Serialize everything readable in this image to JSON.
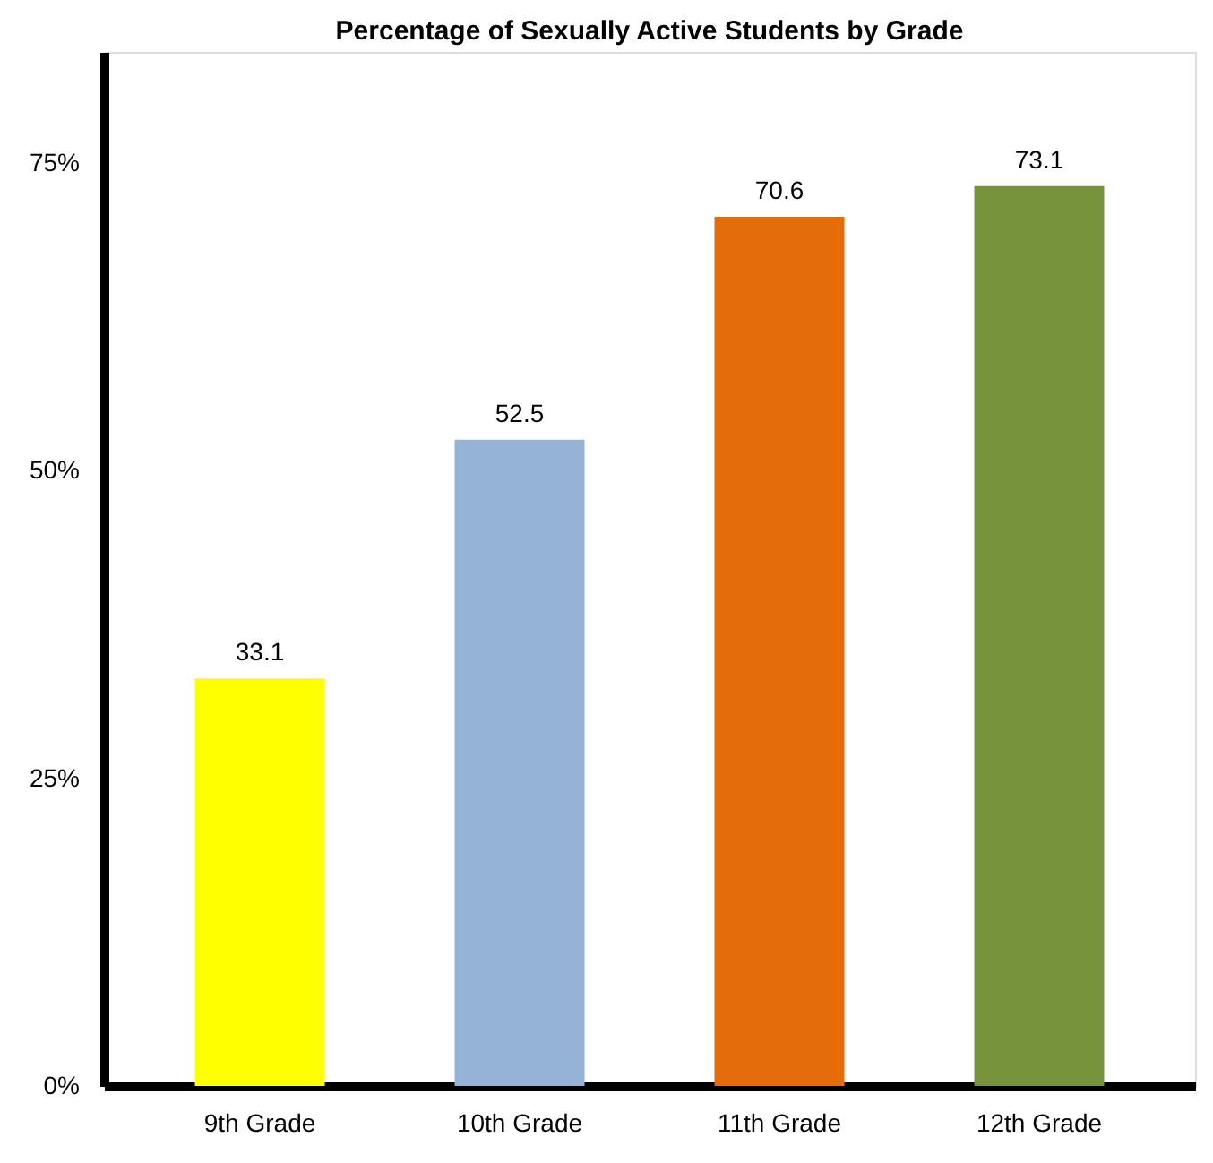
{
  "chart_data": {
    "type": "bar",
    "title": "Percentage of Sexually Active Students by Grade",
    "categories": [
      "9th Grade",
      "10th Grade",
      "11th Grade",
      "12th Grade"
    ],
    "values": [
      33.1,
      52.5,
      70.6,
      73.1
    ],
    "colors": [
      "#ffff00",
      "#95b3d7",
      "#e46c0a",
      "#77933c"
    ],
    "ylim": [
      0,
      84
    ],
    "yticks": [
      {
        "value": 0,
        "label": "0%"
      },
      {
        "value": 25,
        "label": "25%"
      },
      {
        "value": 50,
        "label": "50%"
      },
      {
        "value": 75,
        "label": "75%"
      }
    ],
    "data_labels": true,
    "grid": false
  }
}
